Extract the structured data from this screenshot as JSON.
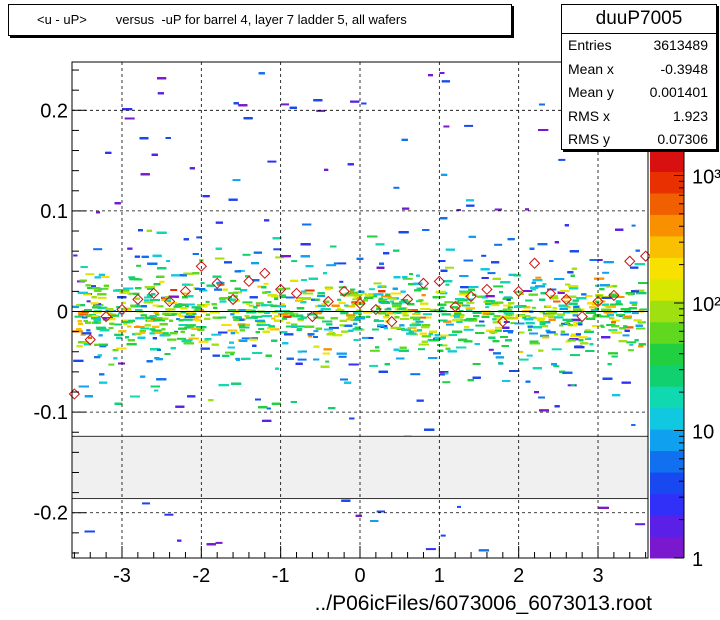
{
  "title": {
    "ylabel": "<u - uP>",
    "separator": "versus",
    "description": "-uP for barrel 4, layer 7 ladder 5, all wafers"
  },
  "stats": {
    "name": "duuP7005",
    "rows": [
      {
        "label": "Entries",
        "value": "3613489"
      },
      {
        "label": "Mean x",
        "value": "-0.3948"
      },
      {
        "label": "Mean y",
        "value": "0.001401"
      },
      {
        "label": "RMS x",
        "value": "1.923"
      },
      {
        "label": "RMS y",
        "value": "0.07306"
      }
    ]
  },
  "footer": "../P06icFiles/6073006_6073013.root",
  "colors": {
    "palette": [
      "#7a18d0",
      "#5a20e8",
      "#3030f8",
      "#1848f0",
      "#1070f0",
      "#10a0f0",
      "#10c8e0",
      "#10d8b0",
      "#10d070",
      "#20d040",
      "#60d820",
      "#a0e010",
      "#d8e800",
      "#f8e000",
      "#f8c000",
      "#f89000",
      "#f06000",
      "#e83000",
      "#d81010"
    ],
    "profile_marker": "#cc1111",
    "dead_band": "#f0f0f0",
    "grid": "#000000"
  },
  "chart_data": {
    "type": "heatmap",
    "title": "<u - uP>       versus  -uP for barrel 4, layer 7 ladder 5, all wafers",
    "xlabel": "",
    "ylabel": "",
    "xlim": [
      -3.63,
      3.63
    ],
    "ylim": [
      -0.245,
      0.248
    ],
    "x_ticks": [
      -3,
      -2,
      -1,
      0,
      1,
      2,
      3
    ],
    "y_ticks": [
      -0.2,
      -0.1,
      0,
      0.1,
      0.2
    ],
    "y_tick_labels": [
      "-0.2",
      "-0.1",
      "0",
      "0.1",
      "0.2"
    ],
    "grid": true,
    "z_scale": "log",
    "z_ticks": [
      1,
      10,
      100,
      1000
    ],
    "z_tick_labels": [
      "1",
      "10",
      "10²",
      "10³"
    ],
    "empty_band_y": [
      -0.186,
      -0.124
    ],
    "profile": {
      "x": [
        -3.6,
        -3.4,
        -3.2,
        -3.0,
        -2.8,
        -2.6,
        -2.4,
        -2.2,
        -2.0,
        -1.8,
        -1.6,
        -1.4,
        -1.2,
        -1.0,
        -0.8,
        -0.6,
        -0.4,
        -0.2,
        0.0,
        0.2,
        0.4,
        0.6,
        0.8,
        1.0,
        1.2,
        1.4,
        1.6,
        1.8,
        2.0,
        2.2,
        2.4,
        2.6,
        2.8,
        3.0,
        3.2,
        3.4,
        3.6
      ],
      "y": [
        -0.082,
        -0.028,
        -0.005,
        0.002,
        0.012,
        0.018,
        0.01,
        0.02,
        0.045,
        0.028,
        0.012,
        0.03,
        0.038,
        0.022,
        0.018,
        -0.005,
        0.01,
        0.02,
        0.008,
        0.002,
        -0.01,
        0.012,
        0.028,
        0.03,
        0.005,
        0.015,
        0.022,
        -0.01,
        0.02,
        0.048,
        0.018,
        0.012,
        -0.005,
        0.01,
        0.016,
        0.05,
        0.055
      ]
    }
  }
}
